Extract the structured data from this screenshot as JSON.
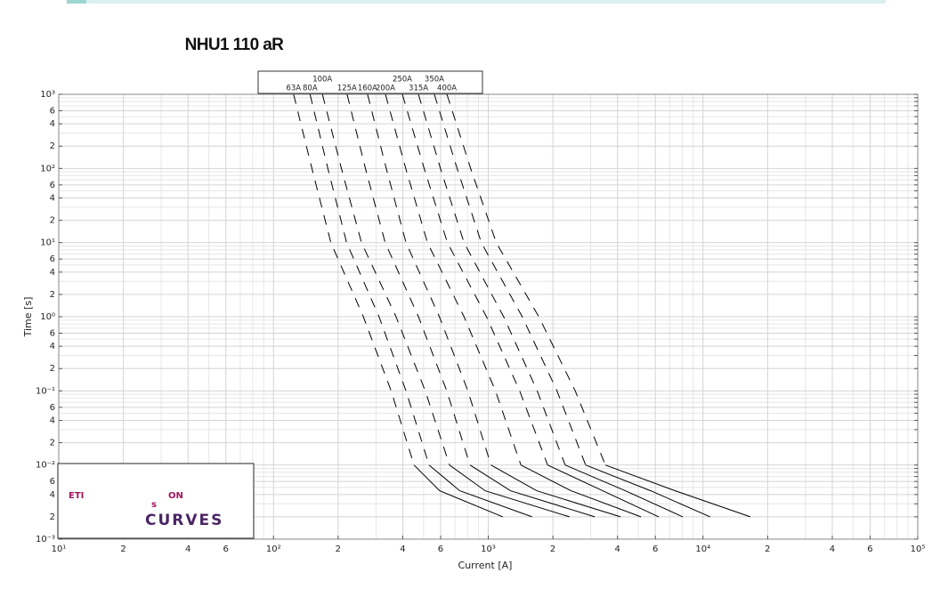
{
  "chart_data": {
    "type": "line",
    "title": "NHU1 110 aR",
    "x_label": "Current [A]",
    "y_label": "Time [s]",
    "log_x": true,
    "log_y": true,
    "grid": true,
    "minor_grid": true,
    "xlim": [
      10,
      100000
    ],
    "ylim": [
      0.001,
      1000
    ],
    "xticks": [
      {
        "value": 10,
        "label": "10¹"
      },
      {
        "value": 20,
        "label": "2"
      },
      {
        "value": 40,
        "label": "4"
      },
      {
        "value": 60,
        "label": "6"
      },
      {
        "value": 100,
        "label": "10²"
      },
      {
        "value": 200,
        "label": "2"
      },
      {
        "value": 400,
        "label": "4"
      },
      {
        "value": 600,
        "label": "6"
      },
      {
        "value": 1000,
        "label": "10³"
      },
      {
        "value": 2000,
        "label": "2"
      },
      {
        "value": 4000,
        "label": "4"
      },
      {
        "value": 6000,
        "label": "6"
      },
      {
        "value": 10000,
        "label": "10⁴"
      },
      {
        "value": 20000,
        "label": "2"
      },
      {
        "value": 40000,
        "label": "4"
      },
      {
        "value": 60000,
        "label": "6"
      },
      {
        "value": 100000,
        "label": "10⁵"
      }
    ],
    "yticks": [
      {
        "value": 1000,
        "label": "10³"
      },
      {
        "value": 600,
        "label": "6"
      },
      {
        "value": 400,
        "label": "4"
      },
      {
        "value": 200,
        "label": "2"
      },
      {
        "value": 100,
        "label": "10²"
      },
      {
        "value": 60,
        "label": "6"
      },
      {
        "value": 40,
        "label": "4"
      },
      {
        "value": 20,
        "label": "2"
      },
      {
        "value": 10,
        "label": "10¹"
      },
      6,
      4,
      2,
      {
        "value": 1,
        "label": "10⁰"
      },
      {
        "value": 0.6,
        "label": "6"
      },
      {
        "value": 0.4,
        "label": "4"
      },
      {
        "value": 0.2,
        "label": "2"
      },
      {
        "value": 0.1,
        "label": "10⁻¹"
      },
      {
        "value": 0.06,
        "label": "6"
      },
      {
        "value": 0.04,
        "label": "4"
      },
      {
        "value": 0.02,
        "label": "2"
      },
      {
        "value": 0.01,
        "label": "10⁻²"
      },
      {
        "value": 0.006,
        "label": "6"
      },
      {
        "value": 0.004,
        "label": "4"
      },
      {
        "value": 0.002,
        "label": "2"
      },
      {
        "value": 0.001,
        "label": "10⁻³"
      }
    ],
    "series": [
      {
        "name": "63A",
        "color": "#000000",
        "segments": [
          {
            "style": "dashed",
            "x": [
              124,
              151,
              185,
              262,
              353,
              451
            ],
            "values": [
              1000,
              100,
              10,
              1,
              0.1,
              0.01
            ]
          },
          {
            "style": "solid",
            "x": [
              451,
              594,
              1170
            ],
            "values": [
              0.01,
              0.0045,
              0.002
            ]
          }
        ]
      },
      {
        "name": "80A",
        "color": "#000000",
        "segments": [
          {
            "style": "dashed",
            "x": [
              148,
              179,
              219,
              310,
              414,
              530
            ],
            "values": [
              1000,
              100,
              10,
              1,
              0.1,
              0.01
            ]
          },
          {
            "style": "solid",
            "x": [
              530,
              737,
              1600
            ],
            "values": [
              0.01,
              0.0045,
              0.002
            ]
          }
        ]
      },
      {
        "name": "100A",
        "color": "#000000",
        "segments": [
          {
            "style": "dashed",
            "x": [
              169,
              207,
              257,
              372,
              509,
              660
            ],
            "values": [
              1000,
              100,
              10,
              1,
              0.1,
              0.01
            ]
          },
          {
            "style": "solid",
            "x": [
              660,
              967,
              2390
            ],
            "values": [
              0.01,
              0.0045,
              0.002
            ]
          }
        ]
      },
      {
        "name": "125A",
        "color": "#000000",
        "segments": [
          {
            "style": "dashed",
            "x": [
              220,
              268,
              331,
              473,
              641,
              822
            ],
            "values": [
              1000,
              100,
              10,
              1,
              0.1,
              0.01
            ]
          },
          {
            "style": "solid",
            "x": [
              822,
              1270,
              3130
            ],
            "values": [
              0.01,
              0.0045,
              0.002
            ]
          }
        ]
      },
      {
        "name": "160A",
        "color": "#000000",
        "segments": [
          {
            "style": "dashed",
            "x": [
              274,
              335,
              414,
              592,
              804,
              1030
            ],
            "values": [
              1000,
              100,
              10,
              1,
              0.1,
              0.01
            ]
          },
          {
            "style": "solid",
            "x": [
              1030,
              1680,
              4130
            ],
            "values": [
              0.01,
              0.0045,
              0.002
            ]
          }
        ]
      },
      {
        "name": "200A",
        "color": "#000000",
        "segments": [
          {
            "style": "dashed",
            "x": [
              332,
              413,
              521,
              771,
              1080,
              1420
            ],
            "values": [
              1000,
              100,
              10,
              1,
              0.1,
              0.01
            ]
          },
          {
            "style": "solid",
            "x": [
              1420,
              2430,
              5140
            ],
            "values": [
              0.01,
              0.0045,
              0.002
            ]
          }
        ]
      },
      {
        "name": "250A",
        "color": "#000000",
        "segments": [
          {
            "style": "dashed",
            "x": [
              398,
              503,
              645,
              981,
              1400,
              1890
            ],
            "values": [
              1000,
              100,
              10,
              1,
              0.1,
              0.01
            ]
          },
          {
            "style": "solid",
            "x": [
              1890,
              3410,
              6220
            ],
            "values": [
              0.01,
              0.0045,
              0.002
            ]
          }
        ]
      },
      {
        "name": "315A",
        "color": "#000000",
        "segments": [
          {
            "style": "dashed",
            "x": [
              473,
              599,
              771,
              1180,
              1690,
              2280
            ],
            "values": [
              1000,
              100,
              10,
              1,
              0.1,
              0.01
            ]
          },
          {
            "style": "solid",
            "x": [
              2280,
              4350,
              8050
            ],
            "values": [
              0.01,
              0.0045,
              0.002
            ]
          }
        ]
      },
      {
        "name": "350A",
        "color": "#000000",
        "segments": [
          {
            "style": "dashed",
            "x": [
              561,
              716,
              928,
              1440,
              2090,
              2840
            ],
            "values": [
              1000,
              100,
              10,
              1,
              0.1,
              0.01
            ]
          },
          {
            "style": "solid",
            "x": [
              2840,
              5710,
              10800
            ],
            "values": [
              0.01,
              0.0045,
              0.002
            ]
          }
        ]
      },
      {
        "name": "400A",
        "color": "#000000",
        "segments": [
          {
            "style": "dashed",
            "x": [
              642,
              828,
              1090,
              1720,
              2540,
              3510
            ],
            "values": [
              1000,
              100,
              10,
              1,
              0.1,
              0.01
            ]
          },
          {
            "style": "solid",
            "x": [
              3510,
              7420,
              16600
            ],
            "values": [
              0.01,
              0.0045,
              0.002
            ]
          }
        ]
      }
    ]
  },
  "logo": {
    "brand": [
      "ETI",
      "s",
      "ON"
    ],
    "tagline": "CURVES"
  }
}
